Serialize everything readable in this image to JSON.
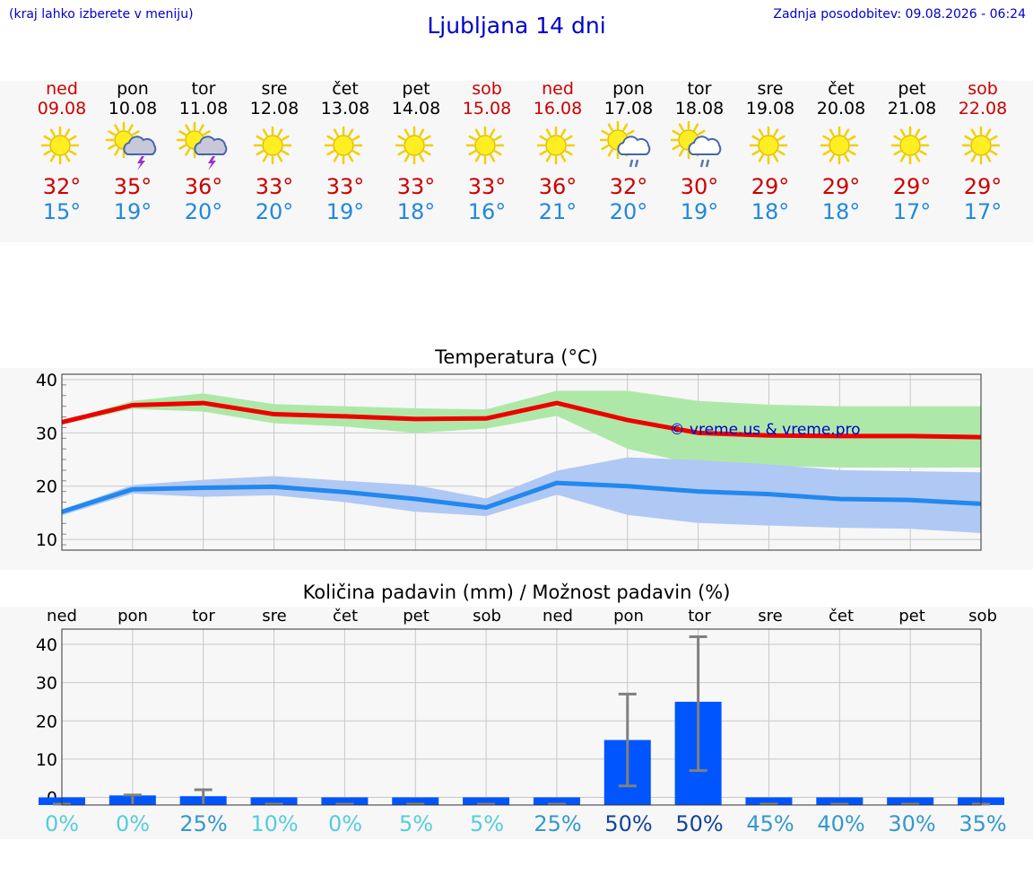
{
  "header": {
    "hint": "(kraj lahko izberete v meniju)",
    "title": "Ljubljana 14 dni",
    "updated": "Zadnja posodobitev: 09.08.2026 - 06:24"
  },
  "days": [
    {
      "name": "ned",
      "date": "09.08",
      "weekend": true,
      "icon": "sun-icon",
      "max": "32°",
      "min": "15°"
    },
    {
      "name": "pon",
      "date": "10.08",
      "weekend": false,
      "icon": "sun-thunderstorm-icon",
      "max": "35°",
      "min": "19°"
    },
    {
      "name": "tor",
      "date": "11.08",
      "weekend": false,
      "icon": "sun-thunderstorm-icon",
      "max": "36°",
      "min": "20°"
    },
    {
      "name": "sre",
      "date": "12.08",
      "weekend": false,
      "icon": "sun-icon",
      "max": "33°",
      "min": "20°"
    },
    {
      "name": "čet",
      "date": "13.08",
      "weekend": false,
      "icon": "sun-icon",
      "max": "33°",
      "min": "19°"
    },
    {
      "name": "pet",
      "date": "14.08",
      "weekend": false,
      "icon": "sun-icon",
      "max": "33°",
      "min": "18°"
    },
    {
      "name": "sob",
      "date": "15.08",
      "weekend": true,
      "icon": "sun-icon",
      "max": "33°",
      "min": "16°"
    },
    {
      "name": "ned",
      "date": "16.08",
      "weekend": true,
      "icon": "sun-icon",
      "max": "36°",
      "min": "21°"
    },
    {
      "name": "pon",
      "date": "17.08",
      "weekend": false,
      "icon": "sun-cloud-rain-icon",
      "max": "32°",
      "min": "20°"
    },
    {
      "name": "tor",
      "date": "18.08",
      "weekend": false,
      "icon": "sun-cloud-rain-icon",
      "max": "30°",
      "min": "19°"
    },
    {
      "name": "sre",
      "date": "19.08",
      "weekend": false,
      "icon": "sun-icon",
      "max": "29°",
      "min": "18°"
    },
    {
      "name": "čet",
      "date": "20.08",
      "weekend": false,
      "icon": "sun-icon",
      "max": "29°",
      "min": "18°"
    },
    {
      "name": "pet",
      "date": "21.08",
      "weekend": false,
      "icon": "sun-icon",
      "max": "29°",
      "min": "17°"
    },
    {
      "name": "sob",
      "date": "22.08",
      "weekend": true,
      "icon": "sun-icon",
      "max": "29°",
      "min": "17°"
    }
  ],
  "colors": {
    "weekend": "#cc0000",
    "max_line": "#ee0000",
    "max_band": "#aee8a8",
    "min_line": "#2288ee",
    "min_band": "#b0c8f4",
    "bar": "#0055ff",
    "error_bar": "#808080"
  },
  "chart_data": [
    {
      "type": "line",
      "title": "Temperatura (°C)",
      "watermark": "© vreme.us & vreme.pro",
      "ylim": [
        8,
        41
      ],
      "yticks": [
        10,
        20,
        30,
        40
      ],
      "grid": true,
      "series": [
        {
          "values": [
            32,
            35.2,
            35.6,
            33.5,
            33.1,
            32.6,
            32.7,
            35.6,
            32.4,
            30,
            29.5,
            29.4,
            29.4,
            29.2
          ],
          "band_low": [
            31.5,
            34.5,
            34,
            31.8,
            31.2,
            30,
            30.8,
            33.2,
            27,
            24,
            23.8,
            23.5,
            23.5,
            23.5
          ],
          "band_high": [
            32.2,
            36,
            37.4,
            35.4,
            35,
            34.6,
            34.4,
            37.9,
            37.9,
            36,
            35.3,
            35,
            35,
            35
          ]
        },
        {
          "values": [
            15.2,
            19.4,
            19.7,
            19.9,
            18.9,
            17.6,
            16,
            20.6,
            20,
            19,
            18.5,
            17.6,
            17.4,
            16.7
          ],
          "band_low": [
            14.5,
            18.6,
            18,
            18.3,
            17,
            15.2,
            14.4,
            18.4,
            14.6,
            13.1,
            12.6,
            12.2,
            12,
            11.2
          ],
          "band_high": [
            15.6,
            20.2,
            21.2,
            21.9,
            21,
            20.2,
            17.7,
            22.9,
            25.4,
            24.9,
            24.1,
            23,
            22.8,
            22.6
          ]
        }
      ]
    },
    {
      "type": "bar",
      "title": "Količina padavin (mm) / Možnost padavin (%)",
      "categories": [
        "ned",
        "pon",
        "tor",
        "sre",
        "čet",
        "pet",
        "sob",
        "ned",
        "pon",
        "tor",
        "sre",
        "čet",
        "pet",
        "sob"
      ],
      "ylim": [
        -2,
        44
      ],
      "yticks": [
        0,
        10,
        20,
        30,
        40
      ],
      "grid": true,
      "values": [
        0,
        0.5,
        0.3,
        0,
        0,
        0,
        0,
        0,
        15,
        25,
        0,
        0,
        0,
        0
      ],
      "error_high": [
        0,
        0.6,
        2,
        0,
        0,
        0,
        0,
        0,
        27,
        42,
        0,
        0,
        0,
        0
      ],
      "error_low": [
        0,
        0,
        0,
        0,
        0,
        0,
        0,
        0,
        3,
        7,
        0,
        0,
        0,
        0
      ],
      "probability": [
        "0%",
        "0%",
        "25%",
        "10%",
        "0%",
        "5%",
        "5%",
        "25%",
        "50%",
        "50%",
        "45%",
        "40%",
        "30%",
        "35%"
      ]
    }
  ]
}
